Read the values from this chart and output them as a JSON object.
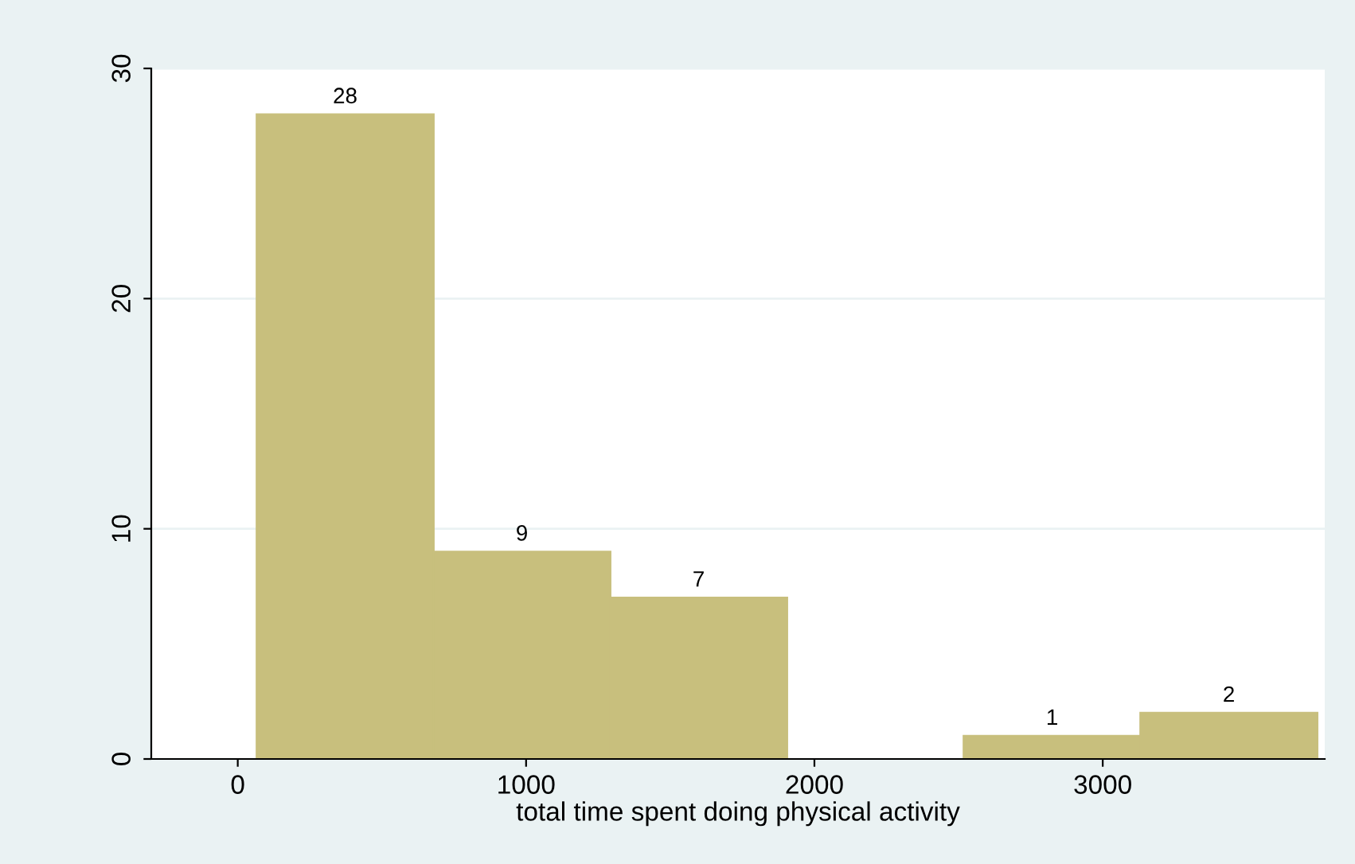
{
  "chart_data": {
    "type": "histogram",
    "xlabel": "total time spent doing physical activity",
    "bins": [
      66,
      679,
      1292,
      1905,
      2518,
      3131,
      3744
    ],
    "values": [
      28,
      9,
      7,
      0,
      1,
      2
    ],
    "color": "#c8bf7d",
    "value_labels": [
      "28",
      "9",
      "7",
      null,
      "1",
      "2"
    ],
    "xlim": [
      -300,
      3770
    ],
    "xticks": [
      0,
      1000,
      2000,
      3000
    ],
    "ylim": [
      0,
      30
    ],
    "yticks": [
      0,
      10,
      20,
      30
    ],
    "grid": "y"
  }
}
